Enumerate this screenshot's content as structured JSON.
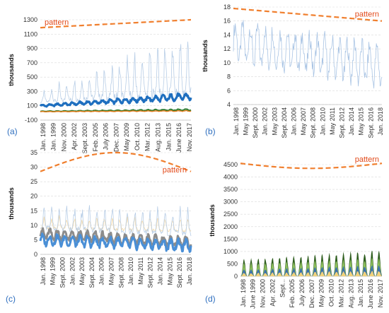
{
  "colors": {
    "pattern": "#f07f2e",
    "pattern_label": "#e24a1a",
    "panel_label": "#2f6fbf",
    "grid": "#d9d9d9"
  },
  "chart_data": [
    {
      "id": "(a)",
      "type": "line",
      "ylabel": "thousands",
      "ylim": [
        -100,
        1300
      ],
      "yticks": [
        "-100",
        "100",
        "300",
        "500",
        "700",
        "900",
        "1100",
        "1300"
      ],
      "xticks": [
        "Jan. 1998",
        "Jan. 1999",
        "Nov. 2000",
        "Apr. 2002",
        "Sept. 2003",
        "Feb. 2005",
        "July 2006",
        "Dec. 2007",
        "May 2009",
        "Oct. 2010",
        "Mar. 2012",
        "Aug. 2013",
        "Jan. 2015",
        "June 2016",
        "Nov. 2017"
      ],
      "pattern_label": "pattern",
      "pattern": [
        1190,
        1300
      ],
      "series": [
        {
          "color": "#b7cde6",
          "width": 0.8,
          "base": [
            150,
            300
          ],
          "amp": [
            150,
            900
          ],
          "season": 0.25
        },
        {
          "color": "#1f6fbf",
          "width": 3.2,
          "base": [
            100,
            230
          ],
          "amp": [
            10,
            40
          ],
          "season": 0.5
        },
        {
          "color": "#2e7d32",
          "width": 2.0,
          "base": [
            22,
            45
          ],
          "amp": [
            3,
            8
          ],
          "season": 0.5
        },
        {
          "color": "#e07b1a",
          "width": 1.5,
          "base": [
            18,
            28
          ],
          "amp": [
            2,
            4
          ],
          "season": 0.5
        }
      ]
    },
    {
      "id": "(b)",
      "type": "line",
      "ylabel": "thousands",
      "ylim": [
        4,
        18
      ],
      "yticks": [
        "4",
        "6",
        "8",
        "10",
        "12",
        "14",
        "16",
        "18"
      ],
      "xticks": [
        "Jan. 1998",
        "May 1999",
        "Sept. 2000",
        "Jan. 2002",
        "May 2003",
        "Sept. 2004",
        "Jan. 2006",
        "May 2007",
        "Sept. 2008",
        "Jan. 2010",
        "May 2011",
        "Sept. 2012",
        "Jan. 2014",
        "May 2015",
        "Sept. 2016",
        "Jan. 2018"
      ],
      "pattern_label": "pattern",
      "pattern": [
        17.8,
        16.0
      ],
      "series": [
        {
          "color": "#a9c4e4",
          "width": 0.8,
          "base": [
            13.0,
            9.5
          ],
          "amp": [
            2.5,
            2.5
          ],
          "season": 0.5
        }
      ]
    },
    {
      "id": "(c)",
      "type": "line",
      "ylabel": "thousands",
      "ylim": [
        0,
        35
      ],
      "yticks": [
        "0",
        "5",
        "10",
        "15",
        "20",
        "25",
        "30",
        "35"
      ],
      "xticks": [
        "Jan. 1998",
        "May 1999",
        "Sept. 2000",
        "Jan. 2002",
        "May 2003",
        "Sept. 2004",
        "Jan. 2006",
        "May 2007",
        "Sept. 2008",
        "Jan. 2010",
        "May 2011",
        "Sept. 2012",
        "Jan. 2014",
        "May 2015",
        "Sept. 2016",
        "Jan. 2018"
      ],
      "pattern_label": "pattern",
      "pattern": [
        28.5,
        35.0
      ],
      "series": [
        {
          "color": "#f4d9a8",
          "width": 0.8,
          "base": [
            9,
            8
          ],
          "amp": [
            4,
            5
          ],
          "season": 0.25
        },
        {
          "color": "#b7cde6",
          "width": 0.8,
          "base": [
            9,
            7
          ],
          "amp": [
            8,
            9
          ],
          "season": 0.25
        },
        {
          "color": "#8c8c8c",
          "width": 3.0,
          "base": [
            7,
            4
          ],
          "amp": [
            1.5,
            1.5
          ],
          "season": 0.5
        },
        {
          "color": "#4a8fd6",
          "width": 3.0,
          "base": [
            5,
            3
          ],
          "amp": [
            1.5,
            1.5
          ],
          "season": 0.5
        }
      ]
    },
    {
      "id": "(d)",
      "type": "area",
      "ylabel": "thousands",
      "ylim": [
        0,
        4500
      ],
      "yticks": [
        "0",
        "500",
        "1000",
        "1500",
        "2000",
        "2500",
        "3000",
        "3500",
        "4000",
        "4500"
      ],
      "xticks": [
        "Jan. 1998",
        "June 1999",
        "Nov. 2000",
        "Apr. 2002",
        "Sept...",
        "Feb. 2005",
        "July 2006",
        "Dec. 2007",
        "May 2009",
        "Oct. 2010",
        "Mar. 2012",
        "Aug. 2013",
        "Jan. 2015",
        "June 2016",
        "Nov. 2017"
      ],
      "pattern_label": "pattern",
      "pattern": [
        4550,
        4350
      ],
      "series": [
        {
          "color": "#2e5d1e",
          "peak": [
            700,
            1300
          ]
        },
        {
          "color": "#8dbf5c",
          "peak": [
            900,
            1100
          ]
        },
        {
          "color": "#3a6fb0",
          "peak": [
            550,
            900
          ]
        },
        {
          "color": "#f2d27a",
          "peak": [
            500,
            850
          ]
        }
      ]
    }
  ]
}
